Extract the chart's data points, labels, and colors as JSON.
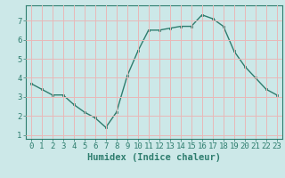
{
  "x": [
    0,
    1,
    2,
    3,
    4,
    5,
    6,
    7,
    8,
    9,
    10,
    11,
    12,
    13,
    14,
    15,
    16,
    17,
    18,
    19,
    20,
    21,
    22,
    23
  ],
  "y": [
    3.7,
    3.4,
    3.1,
    3.1,
    2.6,
    2.2,
    1.9,
    1.4,
    2.2,
    4.1,
    5.4,
    6.5,
    6.5,
    6.6,
    6.7,
    6.7,
    7.3,
    7.1,
    6.7,
    5.4,
    4.6,
    4.0,
    3.4,
    3.1
  ],
  "line_color": "#2e7d6e",
  "marker": "s",
  "marker_size": 2.0,
  "background_color": "#cce8e8",
  "grid_color": "#e8b8b8",
  "xlabel": "Humidex (Indice chaleur)",
  "xlim": [
    -0.5,
    23.5
  ],
  "ylim": [
    0.8,
    7.8
  ],
  "yticks": [
    1,
    2,
    3,
    4,
    5,
    6,
    7
  ],
  "xticks": [
    0,
    1,
    2,
    3,
    4,
    5,
    6,
    7,
    8,
    9,
    10,
    11,
    12,
    13,
    14,
    15,
    16,
    17,
    18,
    19,
    20,
    21,
    22,
    23
  ],
  "tick_color": "#2e7d6e",
  "label_color": "#2e7d6e",
  "xlabel_fontsize": 7.5,
  "tick_fontsize": 6.5,
  "linewidth": 1.0
}
